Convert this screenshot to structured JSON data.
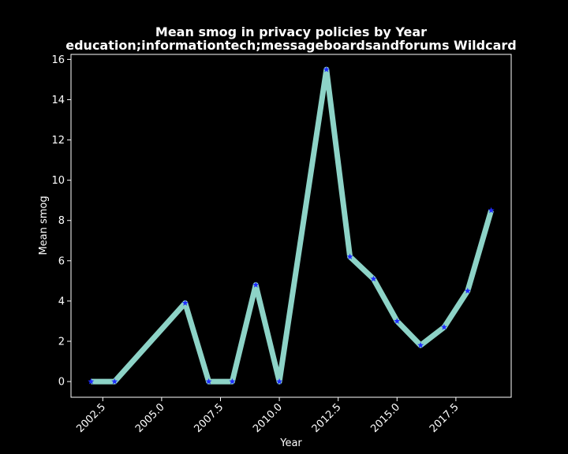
{
  "chart_data": {
    "type": "line",
    "title_lines": [
      "Mean smog in privacy policies by Year",
      "education;informationtech;messageboardsandforums Wildcard"
    ],
    "xlabel": "Year",
    "ylabel": "Mean smog",
    "xlim": [
      2001.15,
      2019.85
    ],
    "ylim": [
      -0.78,
      16.25
    ],
    "x_ticks": [
      2002.5,
      2005.0,
      2007.5,
      2010.0,
      2012.5,
      2015.0,
      2017.5
    ],
    "x_tick_labels": [
      "2002.5",
      "2005.0",
      "2007.5",
      "2010.0",
      "2012.5",
      "2015.0",
      "2017.5"
    ],
    "y_ticks": [
      0,
      2,
      4,
      6,
      8,
      10,
      12,
      14,
      16
    ],
    "y_tick_labels": [
      "0",
      "2",
      "4",
      "6",
      "8",
      "10",
      "12",
      "14",
      "16"
    ],
    "grid": false,
    "series": [
      {
        "x": [
          2002,
          2003,
          2006,
          2007,
          2008,
          2009,
          2010,
          2012,
          2013,
          2014,
          2015,
          2016,
          2017,
          2018,
          2019
        ],
        "y": [
          0,
          0,
          3.9,
          0,
          0,
          4.8,
          0,
          15.5,
          6.2,
          5.1,
          3.0,
          1.8,
          2.7,
          4.5,
          8.5
        ],
        "line_color": "#8dd3c7",
        "marker": "star",
        "marker_color": "#1f2cff"
      }
    ],
    "background": "#000000",
    "foreground": "#ffffff"
  }
}
